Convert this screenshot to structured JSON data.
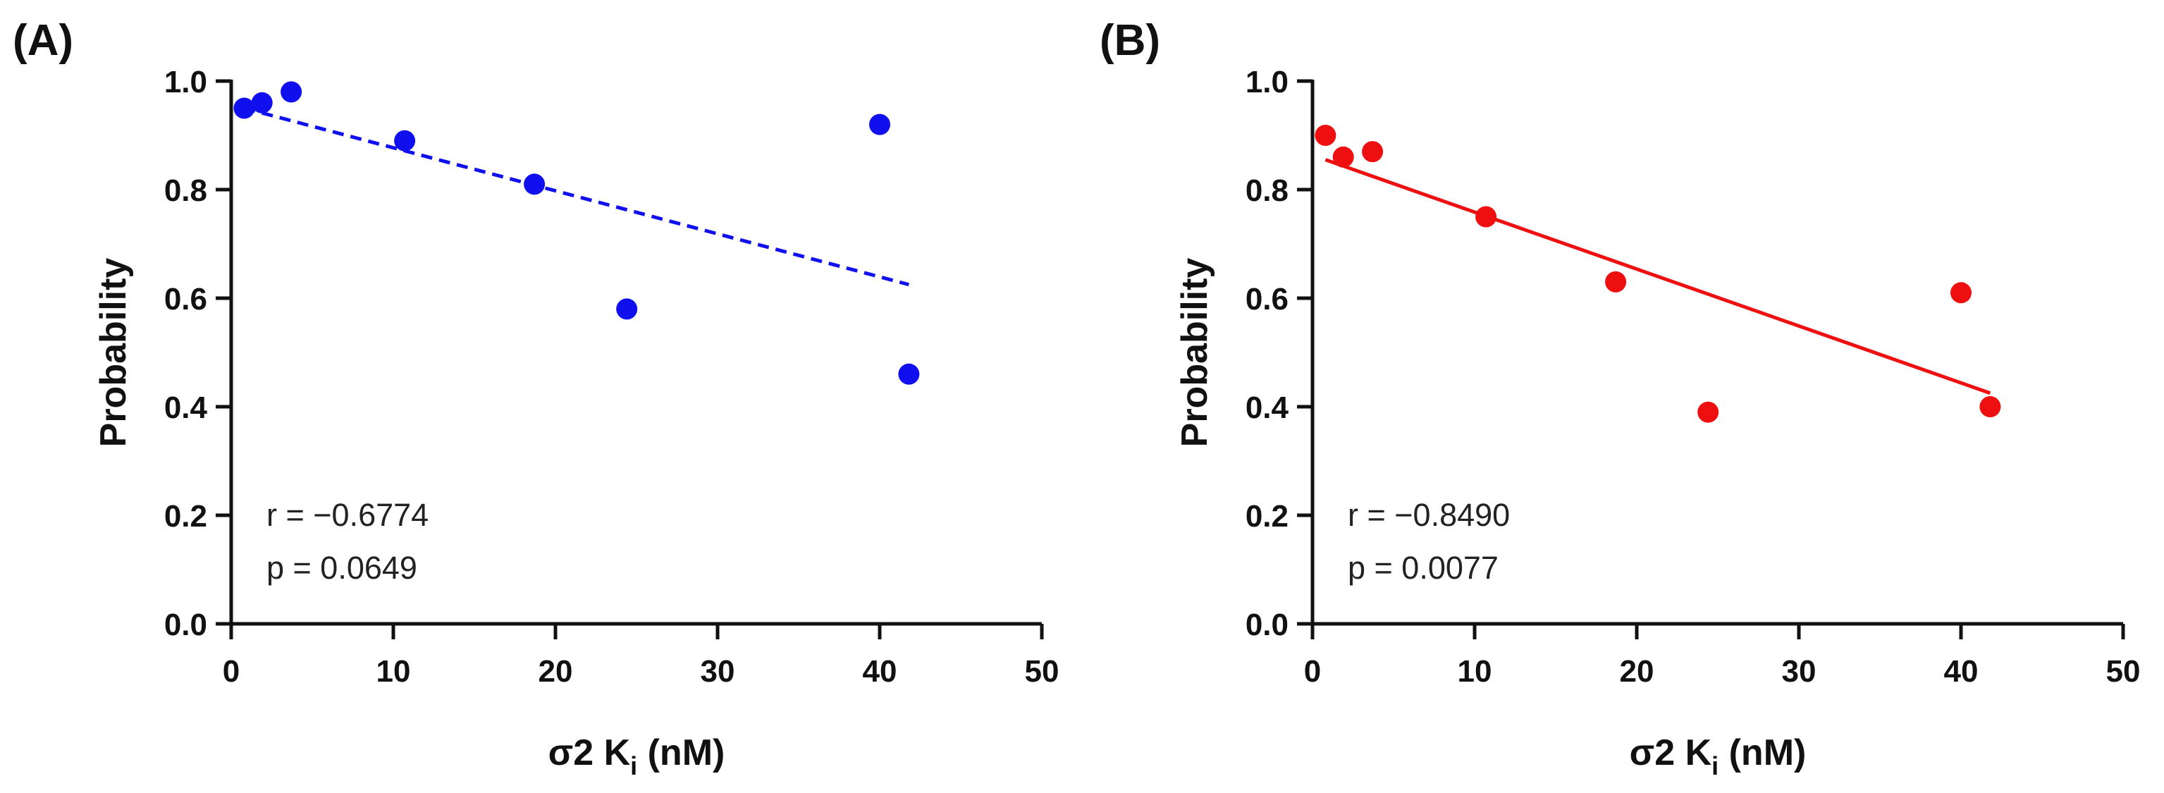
{
  "chart_data": [
    {
      "type": "scatter",
      "panel_label": "(A)",
      "xlabel": {
        "main": "σ2 K",
        "sub": "i",
        "unit": " (nM)"
      },
      "ylabel": "Probability",
      "xlim": [
        0,
        50
      ],
      "ylim": [
        0.0,
        1.0
      ],
      "xticks": [
        0,
        10,
        20,
        30,
        40,
        50
      ],
      "xtick_labels": [
        "0",
        "10",
        "20",
        "30",
        "40",
        "50"
      ],
      "yticks": [
        0.0,
        0.2,
        0.4,
        0.6,
        0.8,
        1.0
      ],
      "ytick_labels": [
        "0.0",
        "0.2",
        "0.4",
        "0.6",
        "0.8",
        "1.0"
      ],
      "color": "#1010ee",
      "x": [
        0.8,
        1.9,
        3.7,
        10.7,
        18.7,
        24.4,
        40.0,
        41.8
      ],
      "y": [
        0.95,
        0.96,
        0.98,
        0.89,
        0.81,
        0.58,
        0.92,
        0.46
      ],
      "fit": {
        "style": "dashed",
        "x": [
          0.8,
          41.8
        ],
        "y": [
          0.95,
          0.625
        ]
      },
      "annotations": {
        "r": "r = −0.6774",
        "p": "p = 0.0649"
      },
      "grid": false
    },
    {
      "type": "scatter",
      "panel_label": "(B)",
      "xlabel": {
        "main": "σ2 K",
        "sub": "i",
        "unit": " (nM)"
      },
      "ylabel": "Probability",
      "xlim": [
        0,
        50
      ],
      "ylim": [
        0.0,
        1.0
      ],
      "xticks": [
        0,
        10,
        20,
        30,
        40,
        50
      ],
      "xtick_labels": [
        "0",
        "10",
        "20",
        "30",
        "40",
        "50"
      ],
      "yticks": [
        0.0,
        0.2,
        0.4,
        0.6,
        0.8,
        1.0
      ],
      "ytick_labels": [
        "0.0",
        "0.2",
        "0.4",
        "0.6",
        "0.8",
        "1.0"
      ],
      "color": "#ee1010",
      "x": [
        0.8,
        1.9,
        3.7,
        10.7,
        18.7,
        24.4,
        40.0,
        41.8
      ],
      "y": [
        0.9,
        0.86,
        0.87,
        0.75,
        0.63,
        0.39,
        0.61,
        0.4
      ],
      "fit": {
        "style": "solid",
        "x": [
          0.8,
          41.8
        ],
        "y": [
          0.855,
          0.425
        ]
      },
      "annotations": {
        "r": "r = −0.8490",
        "p": "p = 0.0077"
      },
      "grid": false
    }
  ]
}
